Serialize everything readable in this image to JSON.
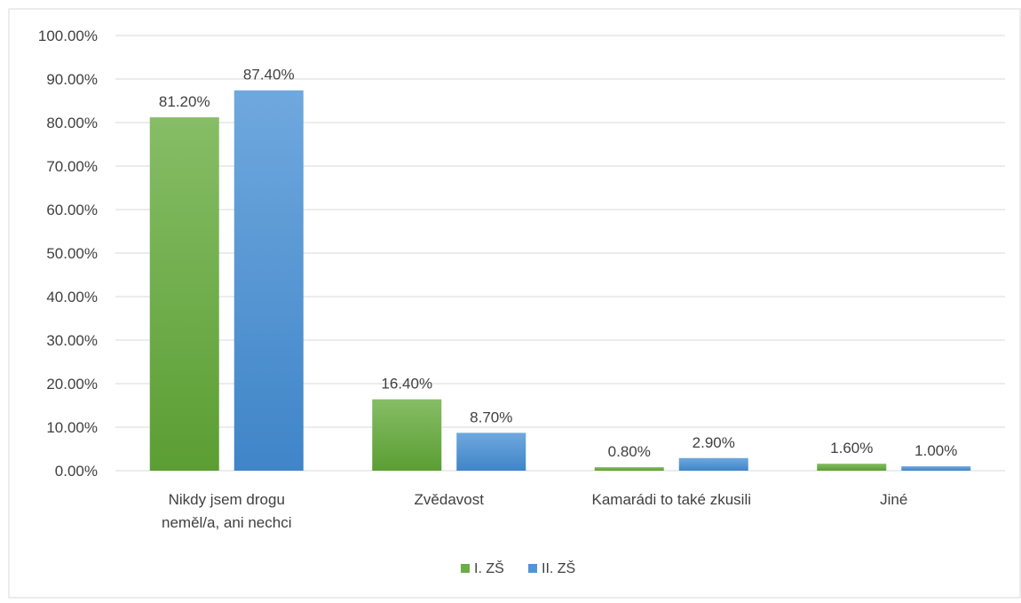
{
  "chart_data": {
    "type": "bar",
    "categories": [
      [
        "Nikdy jsem drogu",
        "neměl/a, ani nechci"
      ],
      [
        "Zvědavost"
      ],
      [
        "Kamarádi to také zkusili"
      ],
      [
        "Jiné"
      ]
    ],
    "series": [
      {
        "name": "I. ZŠ",
        "values": [
          81.2,
          16.4,
          0.8,
          1.6
        ],
        "labels": [
          "81.20%",
          "16.40%",
          "0.80%",
          "1.60%"
        ],
        "color": "#6aae45",
        "color_dark": "#5b9e33",
        "color_light": "#86bd66"
      },
      {
        "name": "II. ZŠ",
        "values": [
          87.4,
          8.7,
          2.9,
          1.0
        ],
        "labels": [
          "87.40%",
          "8.70%",
          "2.90%",
          "1.00%"
        ],
        "color": "#4f95d6",
        "color_dark": "#3f85c8",
        "color_light": "#6fa8de"
      }
    ],
    "ylim": [
      0,
      100
    ],
    "yticks": [
      "0.00%",
      "10.00%",
      "20.00%",
      "30.00%",
      "40.00%",
      "50.00%",
      "60.00%",
      "70.00%",
      "80.00%",
      "90.00%",
      "100.00%"
    ],
    "grid": true,
    "legend": "bottom-center",
    "gridline_color": "#d9d9d9",
    "border_color": "#d9d9d9"
  }
}
